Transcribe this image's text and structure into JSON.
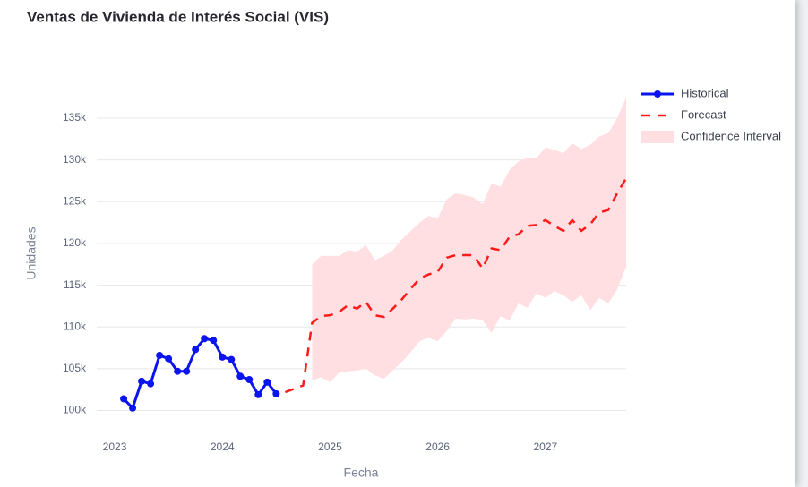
{
  "chart_data": {
    "type": "line",
    "title": "Ventas de Vivienda de Interés Social (VIS)",
    "xlabel": "Fecha",
    "ylabel": "Unidades",
    "xlim": [
      "2022-11",
      "2027-10"
    ],
    "xticks": [
      "2023",
      "2024",
      "2025",
      "2026",
      "2027"
    ],
    "ylim": [
      97700,
      138000
    ],
    "yticks": [
      {
        "value": 100000,
        "label": "100k"
      },
      {
        "value": 105000,
        "label": "105k"
      },
      {
        "value": 110000,
        "label": "110k"
      },
      {
        "value": 115000,
        "label": "115k"
      },
      {
        "value": 120000,
        "label": "120k"
      },
      {
        "value": 125000,
        "label": "125k"
      },
      {
        "value": 130000,
        "label": "130k"
      },
      {
        "value": 135000,
        "label": "135k"
      }
    ],
    "grid": true,
    "legend": "top-right",
    "series": [
      {
        "name": "Historical",
        "color": "#0a14f0",
        "markers": true,
        "x": [
          "2023-02",
          "2023-03",
          "2023-04",
          "2023-05",
          "2023-06",
          "2023-07",
          "2023-08",
          "2023-09",
          "2023-10",
          "2023-11",
          "2023-12",
          "2024-01",
          "2024-02",
          "2024-03",
          "2024-04",
          "2024-05",
          "2024-06",
          "2024-07"
        ],
        "values": [
          101400,
          100300,
          103500,
          103200,
          106600,
          106200,
          104700,
          104700,
          107300,
          108600,
          108400,
          106400,
          106100,
          104100,
          103700,
          101900,
          103400,
          102000
        ]
      },
      {
        "name": "Forecast",
        "color": "#ff1a1a",
        "dash": true,
        "x": [
          "2024-08",
          "2024-09",
          "2024-10",
          "2024-11",
          "2024-12",
          "2025-01",
          "2025-02",
          "2025-03",
          "2025-04",
          "2025-05",
          "2025-06",
          "2025-07",
          "2025-08",
          "2025-09",
          "2025-10",
          "2025-11",
          "2025-12",
          "2026-01",
          "2026-02",
          "2026-03",
          "2026-04",
          "2026-05",
          "2026-06",
          "2026-07",
          "2026-08",
          "2026-09",
          "2026-10",
          "2026-11",
          "2026-12",
          "2027-01",
          "2027-02",
          "2027-03",
          "2027-04",
          "2027-05",
          "2027-06",
          "2027-07",
          "2027-08",
          "2027-09",
          "2027-10"
        ],
        "values": [
          102200,
          102600,
          103000,
          110500,
          111300,
          111400,
          111800,
          112600,
          112200,
          113000,
          111400,
          111200,
          112200,
          113300,
          114600,
          115800,
          116300,
          116600,
          118300,
          118600,
          118600,
          118600,
          117000,
          119400,
          119200,
          120800,
          121100,
          122100,
          122200,
          122800,
          122100,
          121500,
          122800,
          121500,
          122300,
          123700,
          124000,
          126000,
          127800
        ]
      }
    ],
    "band": {
      "name": "Confidence Interval",
      "color": "#ffdfe2",
      "x": [
        "2024-11",
        "2024-12",
        "2025-01",
        "2025-02",
        "2025-03",
        "2025-04",
        "2025-05",
        "2025-06",
        "2025-07",
        "2025-08",
        "2025-09",
        "2025-10",
        "2025-11",
        "2025-12",
        "2026-01",
        "2026-02",
        "2026-03",
        "2026-04",
        "2026-05",
        "2026-06",
        "2026-07",
        "2026-08",
        "2026-09",
        "2026-10",
        "2026-11",
        "2026-12",
        "2027-01",
        "2027-02",
        "2027-03",
        "2027-04",
        "2027-05",
        "2027-06",
        "2027-07",
        "2027-08",
        "2027-09",
        "2027-10"
      ],
      "upper": [
        117500,
        118500,
        118500,
        118500,
        119200,
        119000,
        119800,
        118000,
        118500,
        119200,
        120500,
        121500,
        122500,
        123300,
        123000,
        125300,
        126000,
        125800,
        125500,
        124700,
        127200,
        126800,
        128800,
        129800,
        130300,
        130200,
        131500,
        131200,
        130800,
        132000,
        131300,
        131800,
        132800,
        133200,
        135000,
        137500
      ],
      "lower": [
        103600,
        104000,
        103400,
        104500,
        104700,
        104800,
        105000,
        104200,
        103800,
        104800,
        105800,
        107000,
        108300,
        108700,
        108300,
        109500,
        111000,
        110900,
        111000,
        110800,
        109300,
        111300,
        110800,
        112800,
        112300,
        114000,
        113500,
        114300,
        113800,
        113000,
        113800,
        112000,
        113500,
        112800,
        114500,
        117200
      ]
    }
  }
}
